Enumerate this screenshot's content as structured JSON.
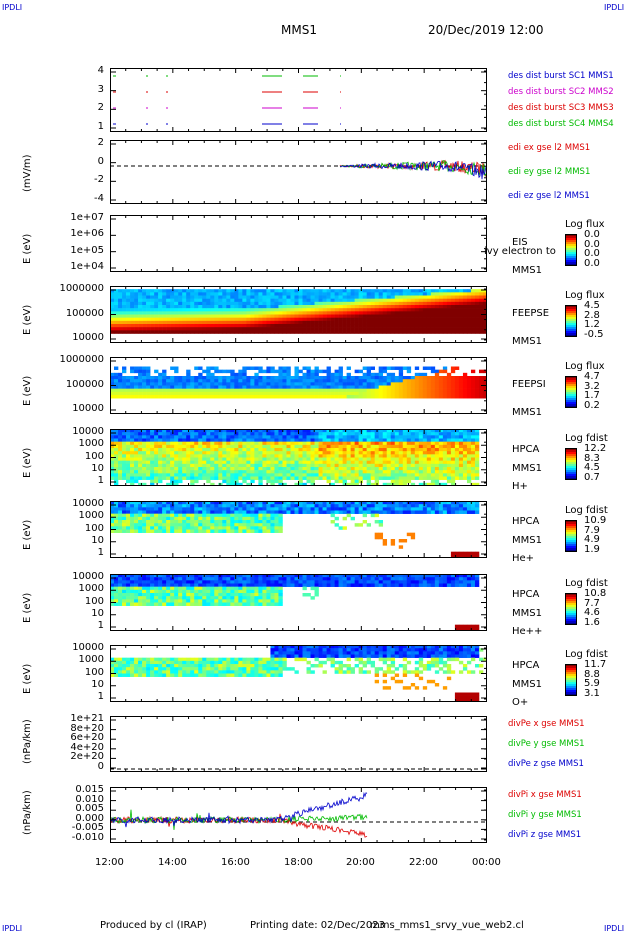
{
  "header": {
    "corner_left_top": "IPDLI",
    "corner_right_top": "IPDLI",
    "corner_left_bottom": "IPDLI",
    "corner_right_bottom": "IPDLI",
    "title": "MMS1",
    "datetime": "20/Dec/2019 12:00"
  },
  "footer": {
    "produced": "Produced by cl (IRAP)",
    "printing": "Printing date: 02/Dec/2023",
    "file": "mms_mms1_srvy_vue_web2.cl"
  },
  "chart_data": [
    {
      "type": "line",
      "panel": "burst",
      "yticks": [
        "4",
        "3",
        "2",
        "1"
      ],
      "legend": [
        {
          "label": "des dist burst SC1 MMS1",
          "color": "#0000cc"
        },
        {
          "label": "des dist burst SC2 MMS2",
          "color": "#cc00cc"
        },
        {
          "label": "des dist burst SC3 MMS3",
          "color": "#dd0000"
        },
        {
          "label": "des dist burst SC4 MMS4",
          "color": "#00bb00"
        }
      ]
    },
    {
      "type": "line",
      "panel": "edi",
      "ylabel": "(mV/m)",
      "yticks": [
        "2",
        "0",
        "-2",
        "-4"
      ],
      "legend": [
        {
          "label": "edi ex gse l2 MMS1",
          "color": "#dd0000"
        },
        {
          "label": "edi ey gse l2 MMS1",
          "color": "#00bb00"
        },
        {
          "label": "edi ez gse l2 MMS1",
          "color": "#0000cc"
        }
      ]
    },
    {
      "type": "heatmap",
      "panel": "eis",
      "ylabel": "E (eV)",
      "yticks": [
        "1e+07",
        "1e+06",
        "1e+05",
        "1e+04"
      ],
      "side_labels": [
        "EIS",
        "MMS1"
      ],
      "overlay_text": "ivy electron to",
      "colorbar": {
        "title": "Log flux",
        "values": [
          "0.0",
          "0.0",
          "0.0",
          "0.0"
        ]
      }
    },
    {
      "type": "heatmap",
      "panel": "feepse",
      "ylabel": "E (eV)",
      "yticks": [
        "1000000",
        "100000",
        "10000"
      ],
      "side_labels": [
        "FEEPSE",
        "MMS1"
      ],
      "colorbar": {
        "title": "Log flux",
        "values": [
          "4.5",
          "2.8",
          "1.2",
          "-0.5"
        ]
      }
    },
    {
      "type": "heatmap",
      "panel": "feepsi",
      "ylabel": "E (eV)",
      "yticks": [
        "1000000",
        "100000",
        "10000"
      ],
      "side_labels": [
        "FEEPSI",
        "MMS1"
      ],
      "colorbar": {
        "title": "Log flux",
        "values": [
          "4.7",
          "3.2",
          "1.7",
          "0.2"
        ]
      }
    },
    {
      "type": "heatmap",
      "panel": "hpca_h",
      "ylabel": "E (eV)",
      "yticks": [
        "10000",
        "1000",
        "100",
        "10",
        "1"
      ],
      "side_labels": [
        "HPCA",
        "MMS1",
        "H+"
      ],
      "colorbar": {
        "title": "Log fdist",
        "values": [
          "12.2",
          "8.3",
          "4.5",
          "0.7"
        ]
      }
    },
    {
      "type": "heatmap",
      "panel": "hpca_he",
      "ylabel": "E (eV)",
      "yticks": [
        "10000",
        "1000",
        "100",
        "10",
        "1"
      ],
      "side_labels": [
        "HPCA",
        "MMS1",
        "He+"
      ],
      "colorbar": {
        "title": "Log fdist",
        "values": [
          "10.9",
          "7.9",
          "4.9",
          "1.9"
        ]
      }
    },
    {
      "type": "heatmap",
      "panel": "hpca_hepp",
      "ylabel": "E (eV)",
      "yticks": [
        "10000",
        "1000",
        "100",
        "10",
        "1"
      ],
      "side_labels": [
        "HPCA",
        "MMS1",
        "He++"
      ],
      "colorbar": {
        "title": "Log fdist",
        "values": [
          "10.8",
          "7.7",
          "4.6",
          "1.6"
        ]
      }
    },
    {
      "type": "heatmap",
      "panel": "hpca_o",
      "ylabel": "E (eV)",
      "yticks": [
        "10000",
        "1000",
        "100",
        "10",
        "1"
      ],
      "side_labels": [
        "HPCA",
        "MMS1",
        "O+"
      ],
      "colorbar": {
        "title": "Log fdist",
        "values": [
          "11.7",
          "8.8",
          "5.9",
          "3.1"
        ]
      }
    },
    {
      "type": "line",
      "panel": "divpe",
      "ylabel": "(nPa/km)",
      "yticks": [
        "1e+21",
        "8e+20",
        "6e+20",
        "4e+20",
        "2e+20",
        "0"
      ],
      "legend": [
        {
          "label": "divPe x gse MMS1",
          "color": "#dd0000"
        },
        {
          "label": "divPe y gse MMS1",
          "color": "#00bb00"
        },
        {
          "label": "divPe z gse MMS1",
          "color": "#0000cc"
        }
      ]
    },
    {
      "type": "line",
      "panel": "divpi",
      "ylabel": "(nPa/km)",
      "yticks": [
        "0.015",
        "0.010",
        "0.005",
        "0.000",
        "-0.005",
        "-0.010"
      ],
      "legend": [
        {
          "label": "divPi x gse MMS1",
          "color": "#dd0000"
        },
        {
          "label": "divPi y gse MMS1",
          "color": "#00bb00"
        },
        {
          "label": "divPi z gse MMS1",
          "color": "#0000cc"
        }
      ]
    }
  ],
  "xaxis": {
    "ticks": [
      "12:00",
      "14:00",
      "16:00",
      "18:00",
      "20:00",
      "22:00",
      "00:00"
    ]
  }
}
